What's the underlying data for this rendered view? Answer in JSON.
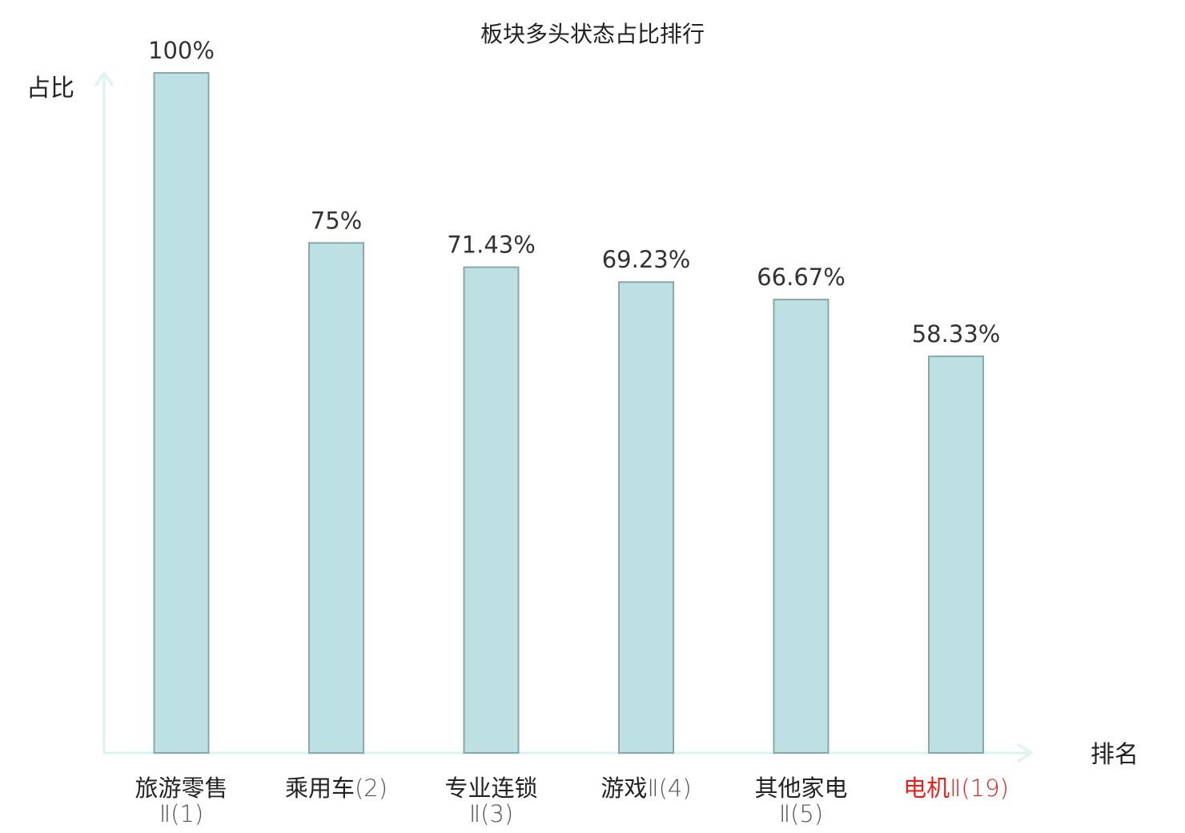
{
  "chart_data": {
    "type": "bar",
    "title": "板块多头状态占比排行",
    "ylabel": "占比",
    "xlabel": "排名",
    "ylim": [
      0,
      100
    ],
    "grid": false,
    "legend": "none",
    "value_suffix": "%",
    "categories": [
      {
        "name": "旅游零售",
        "suffix": "Ⅱ(1)",
        "wrap": true,
        "highlight": false,
        "value": 100,
        "label": "100%"
      },
      {
        "name": "乘用车",
        "suffix": "(2)",
        "wrap": false,
        "highlight": false,
        "value": 75,
        "label": "75%"
      },
      {
        "name": "专业连锁",
        "suffix": "Ⅱ(3)",
        "wrap": true,
        "highlight": false,
        "value": 71.43,
        "label": "71.43%"
      },
      {
        "name": "游戏",
        "suffix": "Ⅱ(4)",
        "wrap": false,
        "highlight": false,
        "value": 69.23,
        "label": "69.23%"
      },
      {
        "name": "其他家电",
        "suffix": "Ⅱ(5)",
        "wrap": true,
        "highlight": false,
        "value": 66.67,
        "label": "66.67%"
      },
      {
        "name": "电机",
        "suffix": "Ⅱ(19)",
        "wrap": false,
        "highlight": true,
        "value": 58.33,
        "label": "58.33%"
      }
    ],
    "colors": {
      "bar_fill": "#bde0e3",
      "bar_stroke": "#8aa7aa",
      "axis": "#e0f3f1",
      "text": "#222222",
      "value_text": "#333333",
      "rank_text": "#555555",
      "highlight": "#e8201c"
    }
  }
}
